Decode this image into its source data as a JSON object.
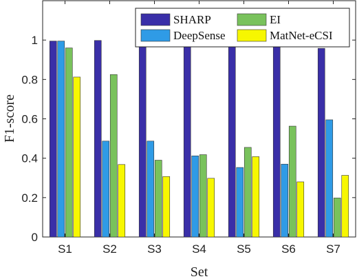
{
  "chart_data": {
    "type": "bar",
    "xlabel": "Set",
    "ylabel": "F1-score",
    "categories": [
      "S1",
      "S2",
      "S3",
      "S4",
      "S5",
      "S6",
      "S7"
    ],
    "ylim": [
      0,
      1.2
    ],
    "yticks": [
      "0",
      "0.2",
      "0.4",
      "0.6",
      "0.8",
      "1"
    ],
    "ytick_values": [
      0,
      0.2,
      0.4,
      0.6,
      0.8,
      1.0
    ],
    "grid": false,
    "legend_position": "top-right",
    "series": [
      {
        "name": "SHARP",
        "color": "#3a2fa8",
        "values": [
          0.995,
          0.998,
          0.993,
          0.975,
          0.965,
          0.998,
          0.958
        ]
      },
      {
        "name": "DeepSense",
        "color": "#2f9be6",
        "values": [
          0.995,
          0.487,
          0.487,
          0.412,
          0.353,
          0.37,
          0.595
        ]
      },
      {
        "name": "EI",
        "color": "#79c25c",
        "values": [
          0.96,
          0.825,
          0.39,
          0.418,
          0.455,
          0.563,
          0.198
        ]
      },
      {
        "name": "MatNet-eCSI",
        "color": "#f7f700",
        "values": [
          0.812,
          0.368,
          0.307,
          0.298,
          0.408,
          0.28,
          0.313
        ]
      }
    ]
  }
}
